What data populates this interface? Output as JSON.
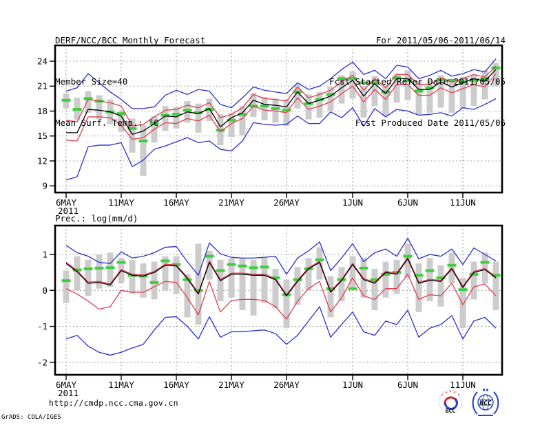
{
  "header": {
    "title": "DERF/NCC/BCC Monthly Forecast",
    "member_size": "Member Size=40",
    "for_range": "For 2011/05/06-2011/06/14",
    "fcst_refer": "Fcst Started Refer Date 2011/05/05",
    "fcst_produced": "Fcst Produced Date 2011/05/06"
  },
  "footer": {
    "url": "http://cmdp.ncc.cma.gov.cn",
    "grads_credit": "GrADS: COLA/IGES",
    "logos": [
      {
        "name": "BCC",
        "label": "BCC"
      },
      {
        "name": "NCC",
        "label": "NCC"
      }
    ]
  },
  "colors": {
    "envelope_blue": "#2a2ed2",
    "band_red": "#e63c50",
    "mean_black": "#000000",
    "obs_green": "#3ecf3e",
    "spread_gray": "#cccccc",
    "grid_gray": "#8c8c8c",
    "frame_black": "#000000",
    "logo_navy": "#2744c4",
    "logo_red": "#d42a2a"
  },
  "chart_data": [
    {
      "type": "line",
      "title": "Mean Surf. Temp.: °C",
      "n_days": 40,
      "x_tick_labels": [
        "6MAY",
        "11MAY",
        "16MAY",
        "21MAY",
        "26MAY",
        "1JUN",
        "6JUN",
        "11JUN"
      ],
      "x_tick_days": [
        0,
        5,
        10,
        15,
        20,
        26,
        31,
        36
      ],
      "x_year_label": "2011",
      "yticks": [
        9,
        12,
        15,
        18,
        21,
        24
      ],
      "ylim": [
        8.2,
        25.9
      ],
      "grid": true,
      "legend": "none",
      "series": [
        {
          "name": "ensemble-max-blue",
          "color": "envelope_blue",
          "values": [
            20.4,
            20.8,
            22.5,
            21.4,
            20.3,
            19.4,
            18.3,
            18.3,
            18.5,
            19.9,
            20.5,
            20.0,
            20.6,
            20.4,
            18.8,
            18.4,
            19.6,
            20.9,
            20.5,
            20.3,
            20.1,
            21.4,
            20.6,
            21.0,
            21.9,
            23.0,
            23.9,
            22.4,
            22.9,
            21.9,
            23.5,
            23.3,
            21.9,
            22.3,
            22.9,
            22.2,
            22.5,
            23.0,
            22.7,
            24.3
          ]
        },
        {
          "name": "upper-band-red",
          "color": "band_red",
          "values": [
            16.9,
            16.7,
            19.4,
            19.2,
            19.0,
            18.6,
            16.2,
            16.4,
            17.3,
            18.1,
            18.2,
            18.7,
            18.4,
            19.0,
            17.2,
            17.6,
            18.4,
            20.0,
            19.5,
            19.4,
            19.2,
            20.9,
            19.6,
            20.0,
            20.5,
            21.5,
            22.3,
            20.5,
            21.9,
            20.8,
            22.4,
            22.4,
            21.2,
            21.2,
            22.0,
            21.5,
            21.9,
            22.4,
            22.1,
            23.4
          ]
        },
        {
          "name": "ensemble-mean-black",
          "color": "mean_black",
          "values": [
            15.4,
            15.4,
            18.2,
            18.1,
            17.9,
            17.4,
            15.2,
            15.6,
            16.5,
            17.4,
            17.3,
            17.9,
            17.7,
            18.3,
            16.1,
            17.2,
            17.8,
            19.3,
            18.8,
            18.7,
            18.5,
            20.3,
            18.9,
            19.3,
            19.8,
            20.8,
            21.7,
            19.8,
            21.3,
            20.1,
            21.9,
            21.9,
            20.6,
            20.6,
            21.5,
            20.9,
            21.4,
            21.9,
            21.6,
            23.0
          ]
        },
        {
          "name": "lower-band-red",
          "color": "band_red",
          "values": [
            14.5,
            14.4,
            17.3,
            17.3,
            17.2,
            16.3,
            14.6,
            14.8,
            15.8,
            16.6,
            16.5,
            17.1,
            16.8,
            17.5,
            15.5,
            16.5,
            17.1,
            18.6,
            18.1,
            18.0,
            17.8,
            19.6,
            18.2,
            18.6,
            19.1,
            20.1,
            21.0,
            19.1,
            20.6,
            19.4,
            21.2,
            21.2,
            19.9,
            19.9,
            20.8,
            20.2,
            20.7,
            21.2,
            20.9,
            22.5
          ]
        },
        {
          "name": "ensemble-min-blue",
          "color": "envelope_blue",
          "values": [
            9.7,
            10.1,
            13.7,
            13.9,
            13.9,
            14.2,
            11.3,
            12.1,
            13.4,
            13.8,
            14.3,
            14.8,
            14.2,
            14.4,
            13.4,
            13.2,
            14.4,
            16.6,
            16.4,
            16.3,
            16.4,
            17.4,
            16.5,
            16.5,
            17.9,
            17.2,
            18.4,
            16.2,
            18.3,
            17.3,
            18.2,
            18.0,
            17.5,
            17.6,
            17.8,
            17.4,
            18.4,
            18.2,
            18.8,
            19.5
          ]
        }
      ],
      "obs_dashes": {
        "name": "observation-green-dash",
        "color": "obs_green",
        "values": [
          19.3,
          18.2,
          19.5,
          19.2,
          17.9,
          17.7,
          15.9,
          14.4,
          16.5,
          17.5,
          17.6,
          18.1,
          17.8,
          18.2,
          15.7,
          16.9,
          17.6,
          18.6,
          18.6,
          18.3,
          18.1,
          20.3,
          18.9,
          19.4,
          20.0,
          21.9,
          21.9,
          21.4,
          21.4,
          20.3,
          22.0,
          21.7,
          20.4,
          20.8,
          21.8,
          21.7,
          21.5,
          21.7,
          21.9,
          23.2
        ]
      },
      "spread_bars": {
        "name": "ensemble-spread-bar",
        "color": "spread_gray",
        "top": [
          20.1,
          19.6,
          20.4,
          19.9,
          19.4,
          18.0,
          17.1,
          16.3,
          17.4,
          18.6,
          18.5,
          19.2,
          18.9,
          19.5,
          17.6,
          17.8,
          18.6,
          20.2,
          19.7,
          19.5,
          19.4,
          21.2,
          20.0,
          20.3,
          20.9,
          22.3,
          22.8,
          21.0,
          22.2,
          21.2,
          22.5,
          22.9,
          21.6,
          21.7,
          22.3,
          21.8,
          22.1,
          22.4,
          22.9,
          23.8
        ],
        "bottom": [
          18.3,
          16.9,
          17.8,
          17.0,
          16.4,
          15.5,
          13.0,
          10.2,
          14.2,
          15.6,
          15.9,
          16.6,
          15.4,
          16.8,
          13.9,
          14.9,
          15.1,
          17.3,
          16.9,
          16.6,
          16.2,
          18.3,
          17.0,
          17.2,
          18.0,
          18.9,
          19.5,
          17.2,
          18.6,
          17.4,
          19.0,
          19.3,
          17.6,
          17.8,
          18.4,
          17.8,
          18.3,
          18.6,
          19.4,
          21.0
        ]
      }
    },
    {
      "type": "line",
      "title": "Prec.: log(mm/d)",
      "n_days": 40,
      "x_tick_labels": [
        "6MAY",
        "11MAY",
        "16MAY",
        "21MAY",
        "26MAY",
        "1JUN",
        "6JUN",
        "11JUN"
      ],
      "x_tick_days": [
        0,
        5,
        10,
        15,
        20,
        26,
        31,
        36
      ],
      "x_year_label": "2011",
      "yticks": [
        -2,
        -1,
        0,
        1
      ],
      "ylim": [
        -2.35,
        1.8
      ],
      "grid": true,
      "legend": "none",
      "series": [
        {
          "name": "ensemble-max-blue",
          "color": "envelope_blue",
          "values": [
            1.25,
            1.05,
            0.95,
            0.78,
            0.75,
            1.07,
            0.9,
            0.95,
            1.05,
            1.2,
            1.22,
            0.8,
            0.42,
            1.32,
            1.02,
            0.92,
            0.9,
            0.9,
            0.92,
            0.95,
            0.45,
            0.9,
            1.1,
            1.35,
            0.55,
            0.9,
            1.3,
            0.8,
            1.05,
            1.15,
            0.95,
            1.45,
            0.88,
            1.0,
            0.95,
            1.15,
            0.72,
            1.18,
            1.0,
            0.82
          ]
        },
        {
          "name": "upper-band-red",
          "color": "band_red",
          "values": [
            0.78,
            0.55,
            0.23,
            0.25,
            0.18,
            0.58,
            0.45,
            0.43,
            0.53,
            0.73,
            0.71,
            0.36,
            -0.07,
            0.81,
            0.3,
            0.48,
            0.48,
            0.45,
            0.45,
            0.33,
            -0.12,
            0.28,
            0.63,
            0.81,
            -0.02,
            0.3,
            0.75,
            0.33,
            0.23,
            0.53,
            0.48,
            0.91,
            0.23,
            0.31,
            0.28,
            0.63,
            0.11,
            0.53,
            0.61,
            0.38
          ]
        },
        {
          "name": "ensemble-mean-black",
          "color": "mean_black",
          "values": [
            0.75,
            0.52,
            0.2,
            0.22,
            0.15,
            0.55,
            0.42,
            0.4,
            0.5,
            0.7,
            0.68,
            0.33,
            -0.1,
            0.78,
            0.27,
            0.45,
            0.45,
            0.42,
            0.42,
            0.3,
            -0.15,
            0.25,
            0.6,
            0.78,
            -0.05,
            0.27,
            0.72,
            0.3,
            0.2,
            0.5,
            0.45,
            0.88,
            0.2,
            0.28,
            0.25,
            0.6,
            0.08,
            0.5,
            0.58,
            0.35
          ]
        },
        {
          "name": "lower-band-red",
          "color": "band_red",
          "values": [
            0.05,
            -0.1,
            -0.3,
            -0.52,
            -0.45,
            0.0,
            -0.05,
            -0.05,
            0.1,
            0.25,
            0.22,
            -0.2,
            -0.68,
            0.25,
            -0.6,
            -0.28,
            -0.25,
            -0.25,
            -0.28,
            -0.45,
            -0.8,
            -0.3,
            0.05,
            0.25,
            -0.6,
            -0.2,
            0.35,
            -0.15,
            -0.25,
            0.05,
            0.05,
            0.45,
            -0.25,
            -0.12,
            -0.15,
            0.2,
            -0.4,
            0.1,
            0.18,
            -0.15
          ]
        },
        {
          "name": "ensemble-min-blue",
          "color": "envelope_blue",
          "values": [
            -1.35,
            -1.25,
            -1.55,
            -1.72,
            -1.8,
            -1.72,
            -1.6,
            -1.5,
            -1.1,
            -0.75,
            -0.73,
            -1.0,
            -1.35,
            -0.73,
            -1.3,
            -1.15,
            -1.15,
            -1.12,
            -1.1,
            -1.2,
            -1.5,
            -1.25,
            -0.85,
            -0.45,
            -1.3,
            -0.95,
            -0.6,
            -1.15,
            -1.25,
            -0.85,
            -0.95,
            -0.55,
            -1.3,
            -1.05,
            -0.95,
            -0.7,
            -1.35,
            -0.85,
            -0.75,
            -1.05
          ]
        }
      ],
      "obs_dashes": {
        "name": "observation-green-dash",
        "color": "obs_green",
        "values": [
          0.27,
          0.57,
          0.6,
          0.62,
          0.63,
          0.78,
          0.42,
          0.4,
          0.22,
          0.82,
          0.72,
          0.3,
          0.0,
          0.95,
          0.55,
          0.72,
          0.68,
          0.63,
          0.65,
          0.35,
          -0.12,
          0.3,
          0.6,
          0.85,
          0.05,
          0.3,
          0.05,
          0.62,
          0.3,
          0.45,
          0.5,
          0.95,
          0.42,
          0.55,
          0.35,
          0.7,
          0.02,
          0.45,
          0.78,
          0.42
        ]
      },
      "spread_bars": {
        "name": "ensemble-spread-bar",
        "color": "spread_gray",
        "top": [
          0.55,
          0.95,
          0.85,
          1.0,
          1.05,
          0.9,
          0.85,
          0.75,
          0.8,
          0.95,
          0.95,
          0.45,
          1.3,
          1.1,
          0.85,
          0.9,
          0.9,
          0.85,
          0.9,
          0.6,
          0.3,
          0.65,
          0.9,
          1.2,
          0.4,
          0.65,
          0.95,
          0.9,
          0.6,
          0.8,
          0.85,
          1.3,
          0.75,
          0.9,
          0.7,
          1.05,
          0.35,
          0.8,
          1.05,
          0.8
        ],
        "bottom": [
          -0.35,
          0.0,
          -0.15,
          0.05,
          0.1,
          0.2,
          -0.1,
          -0.2,
          -0.25,
          0.0,
          -0.1,
          -0.75,
          -0.95,
          0.3,
          -0.3,
          -0.2,
          -0.55,
          -0.7,
          -0.35,
          -0.5,
          -1.05,
          -0.4,
          0.0,
          0.3,
          -0.75,
          -0.3,
          0.1,
          -0.2,
          -0.55,
          -0.2,
          -0.1,
          0.35,
          -0.6,
          -0.3,
          -0.45,
          0.2,
          -1.05,
          -0.25,
          0.2,
          -0.55
        ]
      }
    }
  ]
}
